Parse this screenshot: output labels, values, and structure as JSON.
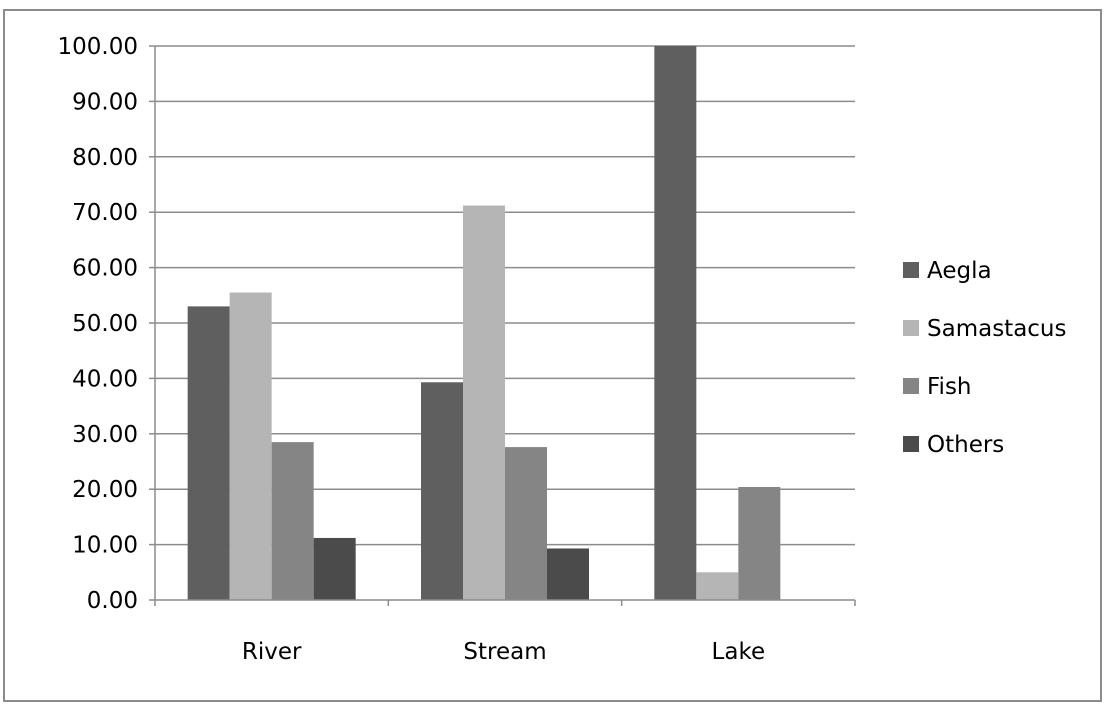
{
  "chart_data": {
    "type": "bar",
    "title": "",
    "xlabel": "",
    "ylabel": "",
    "categories": [
      "River",
      "Stream",
      "Lake"
    ],
    "series": [
      {
        "name": "Aegla",
        "values": [
          53.0,
          39.3,
          100.0
        ],
        "color": "#5f5f5f"
      },
      {
        "name": "Samastacus",
        "values": [
          55.5,
          71.2,
          5.0
        ],
        "color": "#b5b5b5"
      },
      {
        "name": "Fish",
        "values": [
          28.5,
          27.6,
          20.4
        ],
        "color": "#858585"
      },
      {
        "name": "Others",
        "values": [
          11.2,
          9.3,
          0.0
        ],
        "color": "#4b4b4b"
      }
    ],
    "ylim": [
      0,
      100
    ],
    "yticks": [
      "0.00",
      "10.00",
      "20.00",
      "30.00",
      "40.00",
      "50.00",
      "60.00",
      "70.00",
      "80.00",
      "90.00",
      "100.00"
    ],
    "grid": true,
    "legend_position": "right"
  }
}
